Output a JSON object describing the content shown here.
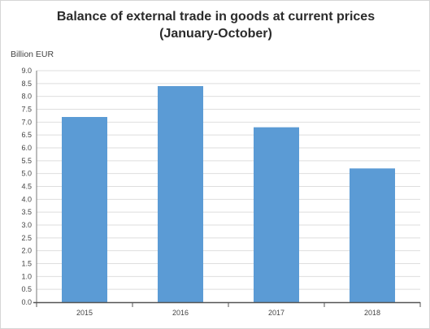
{
  "chart_data": {
    "type": "bar",
    "title_line1": "Balance of external trade in goods at current prices",
    "title_line2": "(January-October)",
    "ylabel": "Billion EUR",
    "xlabel": "",
    "categories": [
      "2015",
      "2016",
      "2017",
      "2018"
    ],
    "values": [
      7.2,
      8.4,
      6.8,
      5.2
    ],
    "ylim": [
      0,
      9.0
    ],
    "ytick_step": 0.5,
    "yticks": [
      "0.0",
      "0.5",
      "1.0",
      "1.5",
      "2.0",
      "2.5",
      "3.0",
      "3.5",
      "4.0",
      "4.5",
      "5.0",
      "5.5",
      "6.0",
      "6.5",
      "7.0",
      "7.5",
      "8.0",
      "8.5",
      "9.0"
    ],
    "grid": true,
    "legend": "none",
    "bar_color": "#5b9bd5"
  }
}
